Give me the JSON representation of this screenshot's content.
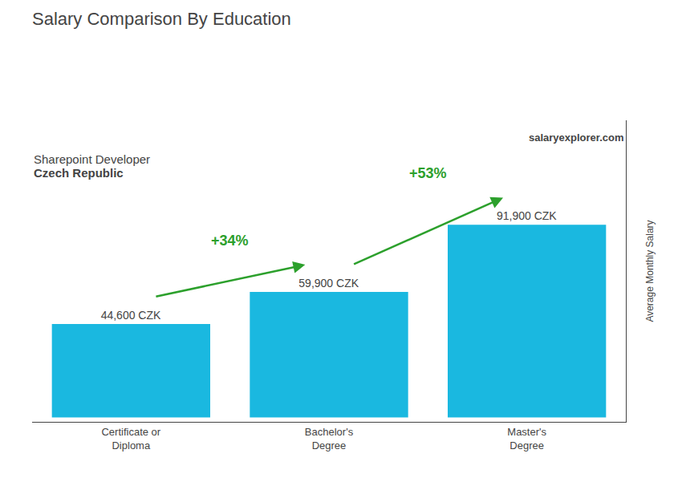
{
  "chart_data": {
    "type": "bar",
    "title": "Salary Comparison By Education",
    "subtitle": "Sharepoint Developer",
    "ylabel": "Average Monthly Salary",
    "categories": [
      "Certificate or\nDiploma",
      "Bachelor's\nDegree",
      "Master's\nDegree"
    ],
    "values": [
      44600,
      59900,
      91900
    ],
    "value_labels": [
      "44,600 CZK",
      "59,900 CZK",
      "91,900 CZK"
    ],
    "data_labels": true,
    "color": "#1ab8e0",
    "ylim": [
      -2100,
      141750
    ],
    "tick_labels": "x",
    "grid": false,
    "annotations": [
      {
        "text": "Czech Republic"
      },
      {
        "text": "salaryexplorer.com"
      },
      {
        "text": "+34%",
        "from": "Certificate or\nDiploma",
        "to": "Bachelor's\nDegree"
      },
      {
        "text": "+53%",
        "from": "Bachelor's\nDegree",
        "to": "Master's\nDegree"
      }
    ]
  }
}
